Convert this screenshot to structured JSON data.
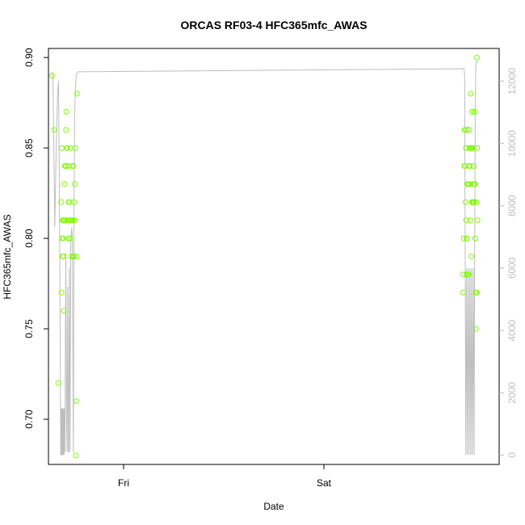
{
  "chart_data": {
    "type": "scatter",
    "title": "ORCAS RF03-4 HFC365mfc_AWAS",
    "xlabel": "Date",
    "ylabel": "HFC365mfc_AWAS",
    "xlim": [
      "2016-07-28T15:00",
      "2016-07-30T21:00"
    ],
    "ylim": [
      0.675,
      0.905
    ],
    "x_ticks": [
      {
        "value": "2016-07-29T00:00",
        "label": "Fri"
      },
      {
        "value": "2016-07-30T00:00",
        "label": "Sat"
      }
    ],
    "y_ticks": [
      0.7,
      0.75,
      0.8,
      0.85,
      0.9
    ],
    "y2_ticks": [
      0,
      2000,
      4000,
      6000,
      8000,
      10000,
      12000
    ],
    "y2lim": [
      -300,
      13050
    ],
    "colors": {
      "points": "#7CFC00",
      "altitude_line": "#bdbdbd",
      "right_axis": "#bdbdbd",
      "axis": "#000000"
    },
    "series": [
      {
        "type": "scatter",
        "axis": "left",
        "points": [
          [
            "2016-07-28T15:25",
            0.89
          ],
          [
            "2016-07-28T15:40",
            0.86
          ],
          [
            "2016-07-28T16:10",
            0.72
          ],
          [
            "2016-07-28T16:32",
            0.82
          ],
          [
            "2016-07-28T16:34",
            0.77
          ],
          [
            "2016-07-28T16:36",
            0.85
          ],
          [
            "2016-07-28T16:38",
            0.8
          ],
          [
            "2016-07-28T16:40",
            0.81
          ],
          [
            "2016-07-28T16:42",
            0.79
          ],
          [
            "2016-07-28T16:44",
            0.8
          ],
          [
            "2016-07-28T16:46",
            0.79
          ],
          [
            "2016-07-28T16:48",
            0.81
          ],
          [
            "2016-07-28T16:50",
            0.76
          ],
          [
            "2016-07-28T16:52",
            0.81
          ],
          [
            "2016-07-28T16:55",
            0.83
          ],
          [
            "2016-07-28T16:58",
            0.84
          ],
          [
            "2016-07-28T17:01",
            0.81
          ],
          [
            "2016-07-28T17:04",
            0.84
          ],
          [
            "2016-07-28T17:06",
            0.86
          ],
          [
            "2016-07-28T17:08",
            0.87
          ],
          [
            "2016-07-28T17:11",
            0.85
          ],
          [
            "2016-07-28T17:14",
            0.85
          ],
          [
            "2016-07-28T17:17",
            0.84
          ],
          [
            "2016-07-28T17:20",
            0.81
          ],
          [
            "2016-07-28T17:23",
            0.82
          ],
          [
            "2016-07-28T17:26",
            0.8
          ],
          [
            "2016-07-28T17:29",
            0.81
          ],
          [
            "2016-07-28T17:32",
            0.82
          ],
          [
            "2016-07-28T17:35",
            0.8
          ],
          [
            "2016-07-28T17:38",
            0.85
          ],
          [
            "2016-07-28T17:41",
            0.81
          ],
          [
            "2016-07-28T17:44",
            0.79
          ],
          [
            "2016-07-28T17:47",
            0.81
          ],
          [
            "2016-07-28T17:50",
            0.84
          ],
          [
            "2016-07-28T17:53",
            0.81
          ],
          [
            "2016-07-28T17:56",
            0.79
          ],
          [
            "2016-07-28T17:59",
            0.84
          ],
          [
            "2016-07-28T18:01",
            0.79
          ],
          [
            "2016-07-28T18:04",
            0.82
          ],
          [
            "2016-07-28T18:07",
            0.81
          ],
          [
            "2016-07-28T18:10",
            0.83
          ],
          [
            "2016-07-28T18:13",
            0.85
          ],
          [
            "2016-07-28T18:16",
            0.68
          ],
          [
            "2016-07-28T18:19",
            0.71
          ],
          [
            "2016-07-28T18:22",
            0.79
          ],
          [
            "2016-07-28T18:25",
            0.88
          ],
          [
            "2016-07-30T16:40",
            0.77
          ],
          [
            "2016-07-30T16:42",
            0.78
          ],
          [
            "2016-07-30T16:45",
            0.8
          ],
          [
            "2016-07-30T16:50",
            0.84
          ],
          [
            "2016-07-30T16:52",
            0.86
          ],
          [
            "2016-07-30T16:54",
            0.84
          ],
          [
            "2016-07-30T16:56",
            0.86
          ],
          [
            "2016-07-30T16:58",
            0.82
          ],
          [
            "2016-07-30T17:00",
            0.85
          ],
          [
            "2016-07-30T17:02",
            0.81
          ],
          [
            "2016-07-30T17:04",
            0.78
          ],
          [
            "2016-07-30T17:06",
            0.8
          ],
          [
            "2016-07-30T17:08",
            0.8
          ],
          [
            "2016-07-30T17:10",
            0.83
          ],
          [
            "2016-07-30T17:12",
            0.86
          ],
          [
            "2016-07-30T17:14",
            0.83
          ],
          [
            "2016-07-30T17:16",
            0.78
          ],
          [
            "2016-07-30T17:18",
            0.83
          ],
          [
            "2016-07-30T17:20",
            0.78
          ],
          [
            "2016-07-30T17:22",
            0.84
          ],
          [
            "2016-07-30T17:24",
            0.85
          ],
          [
            "2016-07-30T17:26",
            0.86
          ],
          [
            "2016-07-30T17:28",
            0.83
          ],
          [
            "2016-07-30T17:30",
            0.84
          ],
          [
            "2016-07-30T17:32",
            0.81
          ],
          [
            "2016-07-30T17:34",
            0.85
          ],
          [
            "2016-07-30T17:36",
            0.88
          ],
          [
            "2016-07-30T17:38",
            0.85
          ],
          [
            "2016-07-30T17:40",
            0.79
          ],
          [
            "2016-07-30T17:42",
            0.82
          ],
          [
            "2016-07-30T17:44",
            0.85
          ],
          [
            "2016-07-30T17:46",
            0.87
          ],
          [
            "2016-07-30T17:48",
            0.87
          ],
          [
            "2016-07-30T17:50",
            0.82
          ],
          [
            "2016-07-30T17:52",
            0.85
          ],
          [
            "2016-07-30T17:54",
            0.82
          ],
          [
            "2016-07-30T17:56",
            0.84
          ],
          [
            "2016-07-30T17:58",
            0.83
          ],
          [
            "2016-07-30T18:00",
            0.82
          ],
          [
            "2016-07-30T18:02",
            0.83
          ],
          [
            "2016-07-30T18:04",
            0.87
          ],
          [
            "2016-07-30T18:06",
            0.83
          ],
          [
            "2016-07-30T18:08",
            0.8
          ],
          [
            "2016-07-30T18:10",
            0.77
          ],
          [
            "2016-07-30T18:12",
            0.75
          ],
          [
            "2016-07-30T18:14",
            0.77
          ],
          [
            "2016-07-30T18:16",
            0.82
          ],
          [
            "2016-07-30T18:18",
            0.77
          ],
          [
            "2016-07-30T18:20",
            0.9
          ],
          [
            "2016-07-30T18:22",
            0.85
          ],
          [
            "2016-07-30T18:24",
            0.81
          ]
        ]
      },
      {
        "type": "line",
        "axis": "right",
        "points": [
          [
            "2016-07-28T15:25",
            12300
          ],
          [
            "2016-07-28T15:32",
            12100
          ],
          [
            "2016-07-28T15:40",
            9500
          ],
          [
            "2016-07-28T15:45",
            7300
          ],
          [
            "2016-07-28T15:55",
            9700
          ],
          [
            "2016-07-28T16:05",
            11500
          ],
          [
            "2016-07-28T16:12",
            12000
          ],
          [
            "2016-07-28T16:18",
            9000
          ],
          [
            "2016-07-28T16:24",
            4000
          ],
          [
            "2016-07-28T16:28",
            0
          ],
          [
            "2016-07-28T16:31",
            1500
          ],
          [
            "2016-07-28T16:34",
            0
          ],
          [
            "2016-07-28T16:37",
            1500
          ],
          [
            "2016-07-28T16:40",
            0
          ],
          [
            "2016-07-28T16:43",
            1500
          ],
          [
            "2016-07-28T16:46",
            0
          ],
          [
            "2016-07-28T16:49",
            1500
          ],
          [
            "2016-07-28T16:52",
            0
          ],
          [
            "2016-07-28T16:55",
            1500
          ],
          [
            "2016-07-28T16:58",
            100
          ],
          [
            "2016-07-28T17:05",
            6500
          ],
          [
            "2016-07-28T17:10",
            1000
          ],
          [
            "2016-07-28T17:13",
            100
          ],
          [
            "2016-07-28T17:18",
            5400
          ],
          [
            "2016-07-28T17:22",
            100
          ],
          [
            "2016-07-28T17:26",
            100
          ],
          [
            "2016-07-28T17:30",
            6000
          ],
          [
            "2016-07-28T17:35",
            100
          ],
          [
            "2016-07-28T17:40",
            6800
          ],
          [
            "2016-07-28T17:47",
            7300
          ],
          [
            "2016-07-28T17:52",
            7000
          ],
          [
            "2016-07-28T17:56",
            3000
          ],
          [
            "2016-07-28T17:59",
            100
          ],
          [
            "2016-07-28T18:04",
            8000
          ],
          [
            "2016-07-28T18:09",
            11000
          ],
          [
            "2016-07-28T18:14",
            11800
          ],
          [
            "2016-07-28T18:20",
            12200
          ],
          [
            "2016-07-28T18:30",
            12300
          ],
          [
            "2016-07-30T16:48",
            12400
          ],
          [
            "2016-07-30T16:52",
            12100
          ],
          [
            "2016-07-30T16:56",
            6000
          ],
          [
            "2016-07-30T17:00",
            0
          ],
          [
            "2016-07-30T17:06",
            6000
          ],
          [
            "2016-07-30T17:12",
            0
          ],
          [
            "2016-07-30T17:18",
            6000
          ],
          [
            "2016-07-30T17:24",
            0
          ],
          [
            "2016-07-30T17:30",
            6000
          ],
          [
            "2016-07-30T17:36",
            0
          ],
          [
            "2016-07-30T17:42",
            6000
          ],
          [
            "2016-07-30T17:48",
            0
          ],
          [
            "2016-07-30T17:54",
            6000
          ],
          [
            "2016-07-30T18:00",
            0
          ],
          [
            "2016-07-30T18:04",
            6800
          ],
          [
            "2016-07-30T18:08",
            11000
          ],
          [
            "2016-07-30T18:12",
            12500
          ],
          [
            "2016-07-30T18:16",
            12600
          ],
          [
            "2016-07-30T18:20",
            12600
          ],
          [
            "2016-07-30T18:24",
            12700
          ]
        ]
      }
    ]
  }
}
